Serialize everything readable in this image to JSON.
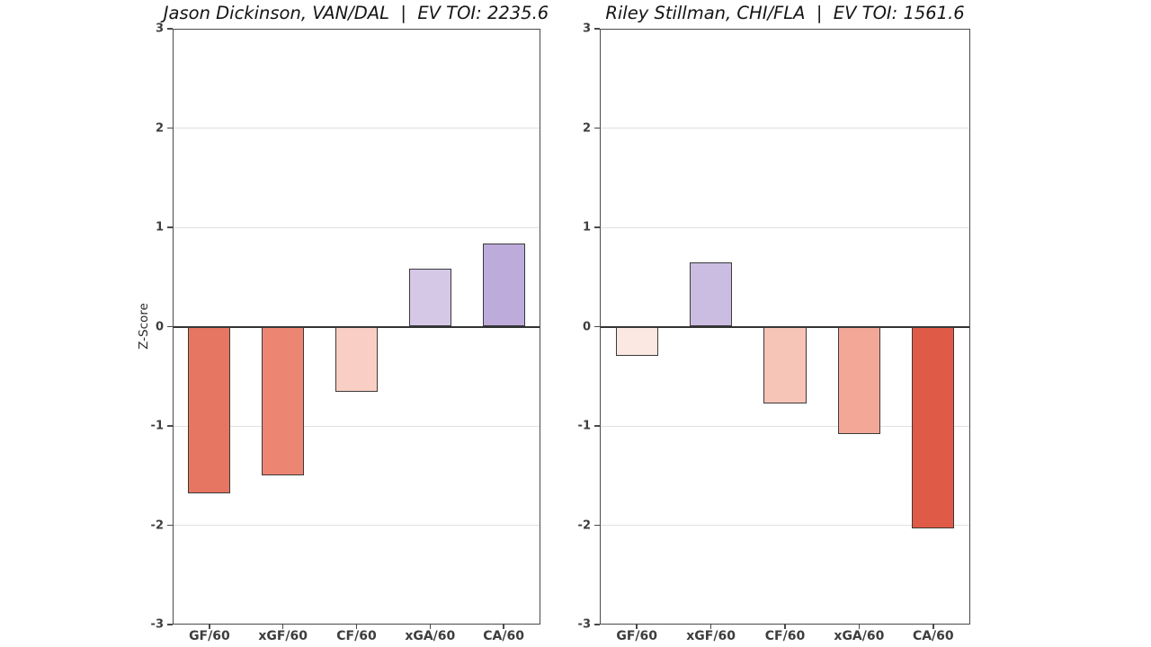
{
  "figure": {
    "background": "#ffffff"
  },
  "chart_data": [
    {
      "type": "bar",
      "title": "Jason Dickinson, VAN/DAL  |  EV TOI: 2235.6",
      "title_clipped_at_right_edge": true,
      "ylabel": "Z-Score",
      "categories": [
        "GF/60",
        "xGF/60",
        "CF/60",
        "xGA/60",
        "CA/60"
      ],
      "values": [
        -1.68,
        -1.5,
        -0.66,
        0.58,
        0.84
      ],
      "bar_colors": [
        "#e67561",
        "#ec8673",
        "#f9cfc5",
        "#d5c8e7",
        "#bdacdb"
      ],
      "ylim": [
        -3,
        3
      ],
      "yticks": [
        3,
        2,
        1,
        0,
        -1,
        -2,
        -3
      ],
      "grid": true,
      "legend": "none"
    },
    {
      "type": "bar",
      "title": "Riley Stillman, CHI/FLA  |  EV TOI: 1561.6",
      "title_clipped_at_right_edge": false,
      "ylabel": "",
      "categories": [
        "GF/60",
        "xGF/60",
        "CF/60",
        "xGA/60",
        "CA/60"
      ],
      "values": [
        -0.29,
        0.65,
        -0.77,
        -1.08,
        -2.03
      ],
      "bar_colors": [
        "#fce8e3",
        "#cbbce2",
        "#f7c4b8",
        "#f3a897",
        "#df5b47"
      ],
      "ylim": [
        -3,
        3
      ],
      "yticks": [
        3,
        2,
        1,
        0,
        -1,
        -2,
        -3
      ],
      "grid": true,
      "legend": "none"
    }
  ],
  "styles": {
    "bar_edge_color": "#3a3a3a",
    "zero_line_color": "#333333",
    "grid_color": "#e0e0e0",
    "spine_color": "#4a4a4a",
    "tick_label_color": "#3d3d3d",
    "title_color": "#151515"
  }
}
